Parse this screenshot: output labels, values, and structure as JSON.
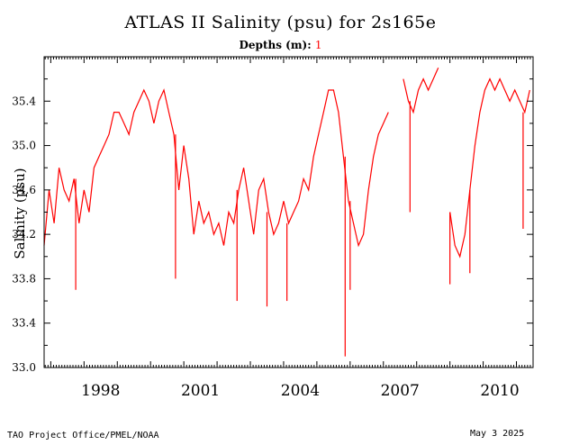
{
  "title": "ATLAS II Salinity (psu) for 2s165e",
  "depths_label": "Depths (m):",
  "depths_value": "1",
  "footer_left": "TAO Project Office/PMEL/NOAA",
  "footer_right": "May  3 2025",
  "colors": {
    "series": "#ff0000",
    "axes": "#000000",
    "background": "#ffffff"
  },
  "chart_data": {
    "type": "line",
    "title": "ATLAS II Salinity (psu) for 2s165e",
    "xlabel": "",
    "ylabel": "Salinity (psu)",
    "xlim": [
      1996.8,
      2011.5
    ],
    "ylim": [
      33.0,
      35.8
    ],
    "x_ticks": [
      1998,
      2001,
      2004,
      2007,
      2010
    ],
    "x_tick_labels": [
      "1998",
      "2001",
      "2004",
      "2007",
      "2010"
    ],
    "y_ticks": [
      33.0,
      33.4,
      33.8,
      34.2,
      34.6,
      35.0,
      35.4
    ],
    "y_tick_labels": [
      "33.0",
      "33.4",
      "33.8",
      "34.2",
      "34.6",
      "35.0",
      "35.4"
    ],
    "grid": false,
    "series": [
      {
        "name": "1",
        "color": "#ff0000",
        "x": [
          1996.8,
          1996.95,
          1997.1,
          1997.25,
          1997.4,
          1997.55,
          1997.7,
          1997.85,
          1998.0,
          1998.15,
          1998.3,
          1998.45,
          1998.6,
          1998.75,
          1998.9,
          1999.05,
          1999.2,
          1999.35,
          1999.5,
          1999.65,
          1999.8,
          1999.95,
          2000.1,
          2000.25,
          2000.4,
          2000.55,
          2000.7,
          2000.85,
          2001.0,
          2001.15,
          2001.3,
          2001.45,
          2001.6,
          2001.75,
          2001.9,
          2002.05,
          2002.2,
          2002.35,
          2002.5,
          2002.65,
          2002.8,
          2002.95,
          2003.1,
          2003.25,
          2003.4,
          2003.55,
          2003.7,
          2003.85,
          2004.0,
          2004.15,
          2004.3,
          2004.45,
          2004.6,
          2004.75,
          2004.9,
          2005.05,
          2005.2,
          2005.35,
          2005.5,
          2005.65,
          2005.8,
          2005.95,
          2006.1,
          2006.25,
          2006.4,
          2006.55,
          2006.7,
          2006.85,
          2007.0,
          2007.15,
          null,
          2007.6,
          2007.75,
          2007.9,
          2008.05,
          2008.2,
          2008.35,
          2008.5,
          2008.65,
          null,
          2009.0,
          2009.15,
          2009.3,
          2009.45,
          2009.6,
          2009.75,
          2009.9,
          2010.05,
          2010.2,
          2010.35,
          2010.5,
          2010.65,
          2010.8,
          2010.95,
          2011.1,
          2011.25,
          2011.4
        ],
        "y": [
          34.1,
          34.6,
          34.3,
          34.8,
          34.6,
          34.5,
          34.7,
          34.3,
          34.6,
          34.4,
          34.8,
          34.9,
          35.0,
          35.1,
          35.3,
          35.3,
          35.2,
          35.1,
          35.3,
          35.4,
          35.5,
          35.4,
          35.2,
          35.4,
          35.5,
          35.3,
          35.1,
          34.6,
          35.0,
          34.7,
          34.2,
          34.5,
          34.3,
          34.4,
          34.2,
          34.3,
          34.1,
          34.4,
          34.3,
          34.6,
          34.8,
          34.5,
          34.2,
          34.6,
          34.7,
          34.4,
          34.2,
          34.3,
          34.5,
          34.3,
          34.4,
          34.5,
          34.7,
          34.6,
          34.9,
          35.1,
          35.3,
          35.5,
          35.5,
          35.3,
          34.9,
          34.5,
          34.3,
          34.1,
          34.2,
          34.6,
          34.9,
          35.1,
          35.2,
          35.3,
          null,
          35.6,
          35.4,
          35.3,
          35.5,
          35.6,
          35.5,
          35.6,
          35.7,
          null,
          34.4,
          34.1,
          34.0,
          34.2,
          34.6,
          35.0,
          35.3,
          35.5,
          35.6,
          35.5,
          35.6,
          35.5,
          35.4,
          35.5,
          35.4,
          35.3,
          35.5
        ]
      }
    ],
    "spikes": [
      {
        "x": 1997.75,
        "y": 33.7
      },
      {
        "x": 2000.75,
        "y": 33.8
      },
      {
        "x": 2002.6,
        "y": 33.6
      },
      {
        "x": 2003.5,
        "y": 33.55
      },
      {
        "x": 2004.1,
        "y": 33.6
      },
      {
        "x": 2005.85,
        "y": 33.1
      },
      {
        "x": 2006.0,
        "y": 33.7
      },
      {
        "x": 2007.8,
        "y": 34.4
      },
      {
        "x": 2009.0,
        "y": 33.75
      },
      {
        "x": 2009.6,
        "y": 33.85
      },
      {
        "x": 2011.2,
        "y": 34.25
      }
    ]
  }
}
